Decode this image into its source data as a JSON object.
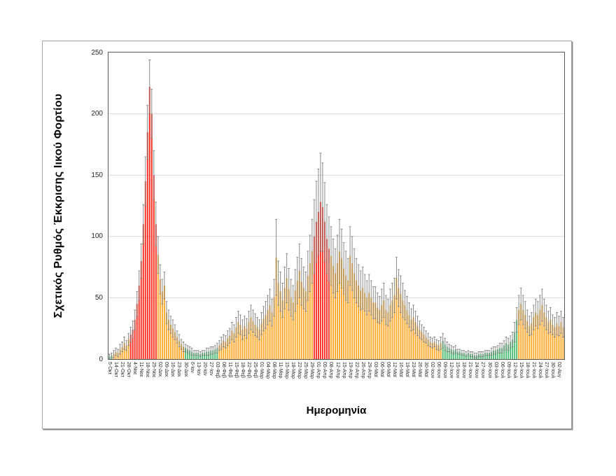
{
  "figure": {
    "background": "#FFFFFF",
    "border_color": "#A6A6A6",
    "y_axis_title": "Σχετικός Ρυθμός Έκκρισης Ιικού Φορτίου",
    "x_axis_title": "Ημερομηνία"
  },
  "chart_data": {
    "type": "bar",
    "title": "",
    "ylabel": "Σχετικός Ρυθμός Έκκρισης Ιικού Φορτίου",
    "xlabel": "Ημερομηνία",
    "ylim": [
      0,
      250
    ],
    "y_ticks": [
      0,
      50,
      100,
      150,
      200,
      250
    ],
    "grid": "horizontal-major",
    "legend_position": "none",
    "error_bars": "symmetric, gray caps",
    "bars_per_x_label": 3,
    "x_tick_labels": [
      "5-Οκτ",
      "14-Οκτ",
      "21-Οκτ",
      "28-Οκτ",
      "4-Νοε",
      "11-Νοε",
      "18-Νοε",
      "25-Νοε",
      "02-Δεκ",
      "09-Δεκ",
      "16-Δεκ",
      "23-Δεκ",
      "30-Δεκ",
      "6-Ιαν",
      "13-Ιαν",
      "20-Ιαν",
      "27-Ιαν",
      "03-Φεβ",
      "08-Φεβ",
      "11-Φεβ",
      "15-Φεβ",
      "18-Φεβ",
      "22-Φεβ",
      "25-Φεβ",
      "01-Μαρ",
      "04-Μαρ",
      "08-Μαρ",
      "11-Μαρ",
      "15-Μαρ",
      "18-Μαρ",
      "22-Μαρ",
      "25-Μαρ",
      "29-Μαρ",
      "01-Απρ",
      "05-Απρ",
      "08-Απρ",
      "12-Απρ",
      "15-Απρ",
      "19-Απρ",
      "22-Απρ",
      "26-Απρ",
      "29-Απρ",
      "03-Μαϊ",
      "06-Μαϊ",
      "09-Μαϊ",
      "12-Μαϊ",
      "16-Μαϊ",
      "19-Μαϊ",
      "23-Μαϊ",
      "26-Μαϊ",
      "30-Μαϊ",
      "02-Ιουν",
      "06-Ιουν",
      "09-Ιουν",
      "12-Ιουν",
      "15-Ιουν",
      "18-Ιουν",
      "21-Ιουν",
      "24-Ιουν",
      "27-Ιουν",
      "30-Ιουν",
      "03-Ιουλ",
      "06-Ιουλ",
      "09-Ιουλ",
      "12-Ιουλ",
      "15-Ιουλ",
      "18-Ιουλ",
      "21-Ιουλ",
      "24-Ιουλ",
      "27-Ιουλ",
      "30-Ιουλ",
      "02-Αυγ"
    ],
    "colors": {
      "red": "#F92C1E",
      "orange": "#FCA828",
      "green": "#4DBD74",
      "error_bar": "#808080",
      "frame": "#595959",
      "grid": "#D9D9D9"
    },
    "color_segments": [
      {
        "from": 0,
        "to": 1,
        "color": "green"
      },
      {
        "from": 2,
        "to": 9,
        "color": "orange"
      },
      {
        "from": 10,
        "to": 22,
        "color": "red"
      },
      {
        "from": 23,
        "to": 35,
        "color": "orange"
      },
      {
        "from": 36,
        "to": 51,
        "color": "green"
      },
      {
        "from": 52,
        "to": 96,
        "color": "orange"
      },
      {
        "from": 97,
        "to": 104,
        "color": "red"
      },
      {
        "from": 105,
        "to": 157,
        "color": "orange"
      },
      {
        "from": 158,
        "to": 193,
        "color": "green"
      },
      {
        "from": 194,
        "to": 215,
        "color": "orange"
      }
    ],
    "bars": [
      [
        2,
        2
      ],
      [
        3,
        2
      ],
      [
        4,
        3
      ],
      [
        6,
        3
      ],
      [
        5,
        3
      ],
      [
        8,
        4
      ],
      [
        10,
        4
      ],
      [
        13,
        5
      ],
      [
        11,
        4
      ],
      [
        16,
        5
      ],
      [
        20,
        6
      ],
      [
        24,
        7
      ],
      [
        32,
        8
      ],
      [
        45,
        10
      ],
      [
        60,
        12
      ],
      [
        80,
        14
      ],
      [
        110,
        16
      ],
      [
        145,
        20
      ],
      [
        185,
        22
      ],
      [
        222,
        22
      ],
      [
        200,
        20
      ],
      [
        150,
        20
      ],
      [
        110,
        18
      ],
      [
        85,
        15
      ],
      [
        65,
        12
      ],
      [
        55,
        10
      ],
      [
        60,
        11
      ],
      [
        38,
        9
      ],
      [
        32,
        8
      ],
      [
        28,
        7
      ],
      [
        25,
        7
      ],
      [
        22,
        6
      ],
      [
        18,
        5
      ],
      [
        15,
        5
      ],
      [
        12,
        4
      ],
      [
        10,
        4
      ],
      [
        9,
        3
      ],
      [
        8,
        3
      ],
      [
        7,
        3
      ],
      [
        6,
        3
      ],
      [
        5,
        2
      ],
      [
        5,
        2
      ],
      [
        5,
        2
      ],
      [
        4,
        2
      ],
      [
        5,
        2
      ],
      [
        5,
        2
      ],
      [
        6,
        3
      ],
      [
        6,
        3
      ],
      [
        7,
        3
      ],
      [
        7,
        3
      ],
      [
        8,
        3
      ],
      [
        9,
        4
      ],
      [
        11,
        4
      ],
      [
        13,
        5
      ],
      [
        15,
        5
      ],
      [
        14,
        5
      ],
      [
        17,
        6
      ],
      [
        19,
        6
      ],
      [
        23,
        7
      ],
      [
        21,
        7
      ],
      [
        26,
        8
      ],
      [
        30,
        9
      ],
      [
        28,
        8
      ],
      [
        24,
        8
      ],
      [
        27,
        8
      ],
      [
        25,
        8
      ],
      [
        30,
        9
      ],
      [
        34,
        10
      ],
      [
        31,
        9
      ],
      [
        28,
        9
      ],
      [
        26,
        8
      ],
      [
        24,
        8
      ],
      [
        29,
        9
      ],
      [
        33,
        10
      ],
      [
        36,
        11
      ],
      [
        40,
        12
      ],
      [
        44,
        13
      ],
      [
        38,
        11
      ],
      [
        50,
        15
      ],
      [
        83,
        31
      ],
      [
        62,
        18
      ],
      [
        55,
        16
      ],
      [
        48,
        14
      ],
      [
        58,
        17
      ],
      [
        66,
        20
      ],
      [
        57,
        17
      ],
      [
        50,
        15
      ],
      [
        46,
        14
      ],
      [
        56,
        17
      ],
      [
        64,
        19
      ],
      [
        72,
        22
      ],
      [
        63,
        19
      ],
      [
        58,
        17
      ],
      [
        55,
        16
      ],
      [
        68,
        20
      ],
      [
        78,
        23
      ],
      [
        88,
        26
      ],
      [
        100,
        30
      ],
      [
        112,
        33
      ],
      [
        120,
        35
      ],
      [
        128,
        40
      ],
      [
        124,
        36
      ],
      [
        112,
        32
      ],
      [
        98,
        28
      ],
      [
        90,
        26
      ],
      [
        84,
        24
      ],
      [
        76,
        22
      ],
      [
        70,
        20
      ],
      [
        78,
        23
      ],
      [
        88,
        26
      ],
      [
        82,
        24
      ],
      [
        74,
        21
      ],
      [
        68,
        20
      ],
      [
        64,
        18
      ],
      [
        84,
        24
      ],
      [
        78,
        22
      ],
      [
        70,
        20
      ],
      [
        64,
        18
      ],
      [
        60,
        17
      ],
      [
        56,
        16
      ],
      [
        58,
        17
      ],
      [
        54,
        15
      ],
      [
        50,
        14
      ],
      [
        54,
        15
      ],
      [
        50,
        14
      ],
      [
        46,
        13
      ],
      [
        46,
        13
      ],
      [
        42,
        12
      ],
      [
        40,
        11
      ],
      [
        44,
        13
      ],
      [
        48,
        14
      ],
      [
        40,
        12
      ],
      [
        38,
        11
      ],
      [
        44,
        13
      ],
      [
        48,
        14
      ],
      [
        52,
        14
      ],
      [
        66,
        17
      ],
      [
        58,
        15
      ],
      [
        53,
        15
      ],
      [
        48,
        14
      ],
      [
        44,
        12
      ],
      [
        40,
        11
      ],
      [
        36,
        10
      ],
      [
        32,
        9
      ],
      [
        34,
        10
      ],
      [
        30,
        9
      ],
      [
        27,
        8
      ],
      [
        24,
        7
      ],
      [
        22,
        6
      ],
      [
        20,
        6
      ],
      [
        18,
        5
      ],
      [
        16,
        5
      ],
      [
        14,
        4
      ],
      [
        13,
        4
      ],
      [
        14,
        4
      ],
      [
        12,
        4
      ],
      [
        11,
        4
      ],
      [
        13,
        5
      ],
      [
        15,
        6
      ],
      [
        12,
        5
      ],
      [
        10,
        4
      ],
      [
        9,
        3
      ],
      [
        8,
        3
      ],
      [
        7,
        3
      ],
      [
        8,
        3
      ],
      [
        6,
        2
      ],
      [
        6,
        2
      ],
      [
        5,
        2
      ],
      [
        5,
        2
      ],
      [
        4,
        2
      ],
      [
        5,
        2
      ],
      [
        4,
        2
      ],
      [
        4,
        2
      ],
      [
        3,
        2
      ],
      [
        3,
        2
      ],
      [
        4,
        2
      ],
      [
        4,
        2
      ],
      [
        4,
        2
      ],
      [
        5,
        2
      ],
      [
        5,
        2
      ],
      [
        5,
        2
      ],
      [
        6,
        3
      ],
      [
        7,
        3
      ],
      [
        7,
        3
      ],
      [
        8,
        3
      ],
      [
        9,
        4
      ],
      [
        9,
        4
      ],
      [
        11,
        4
      ],
      [
        13,
        5
      ],
      [
        12,
        5
      ],
      [
        14,
        5
      ],
      [
        16,
        6
      ],
      [
        22,
        8
      ],
      [
        32,
        10
      ],
      [
        40,
        12
      ],
      [
        45,
        13
      ],
      [
        40,
        12
      ],
      [
        36,
        11
      ],
      [
        31,
        9
      ],
      [
        27,
        8
      ],
      [
        29,
        9
      ],
      [
        34,
        10
      ],
      [
        38,
        11
      ],
      [
        36,
        11
      ],
      [
        40,
        12
      ],
      [
        44,
        13
      ],
      [
        38,
        11
      ],
      [
        34,
        10
      ],
      [
        30,
        9
      ],
      [
        32,
        10
      ],
      [
        28,
        8
      ],
      [
        26,
        8
      ],
      [
        29,
        9
      ],
      [
        27,
        8
      ],
      [
        30,
        9
      ],
      [
        26,
        8
      ]
    ]
  }
}
